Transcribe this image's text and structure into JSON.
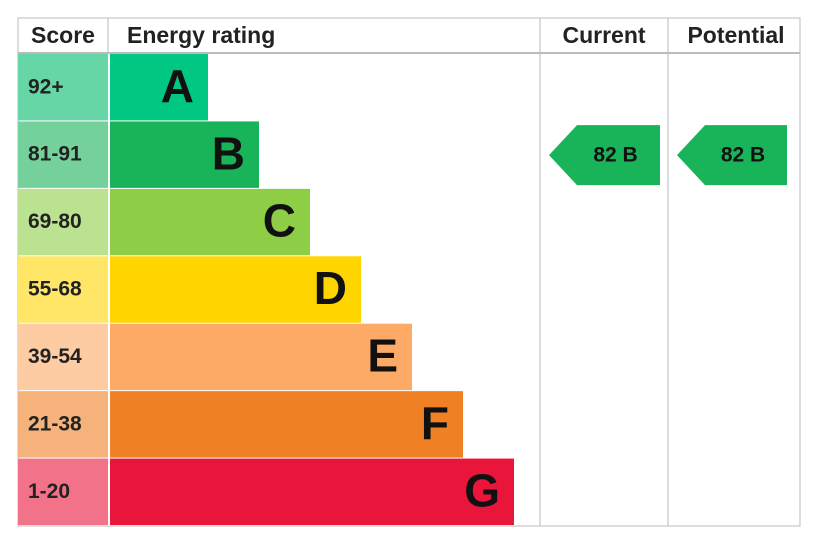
{
  "header": {
    "score": "Score",
    "rating": "Energy rating",
    "current": "Current",
    "potential": "Potential"
  },
  "bands": [
    {
      "score": "92+",
      "letter": "A",
      "color": "#00c781",
      "light": "#66d6a6"
    },
    {
      "score": "81-91",
      "letter": "B",
      "color": "#19b459",
      "light": "#75d19b"
    },
    {
      "score": "69-80",
      "letter": "C",
      "color": "#8dce46",
      "light": "#bbe290"
    },
    {
      "score": "55-68",
      "letter": "D",
      "color": "#ffd500",
      "light": "#ffe666"
    },
    {
      "score": "39-54",
      "letter": "E",
      "color": "#fcaa65",
      "light": "#fdcca3"
    },
    {
      "score": "21-38",
      "letter": "F",
      "color": "#ef8023",
      "light": "#f5b37b"
    },
    {
      "score": "1-20",
      "letter": "G",
      "color": "#e9153b",
      "light": "#f27389"
    }
  ],
  "current": {
    "label": "82 B",
    "band": 1,
    "color": "#19b459"
  },
  "potential": {
    "label": "82 B",
    "band": 1,
    "color": "#19b459"
  }
}
